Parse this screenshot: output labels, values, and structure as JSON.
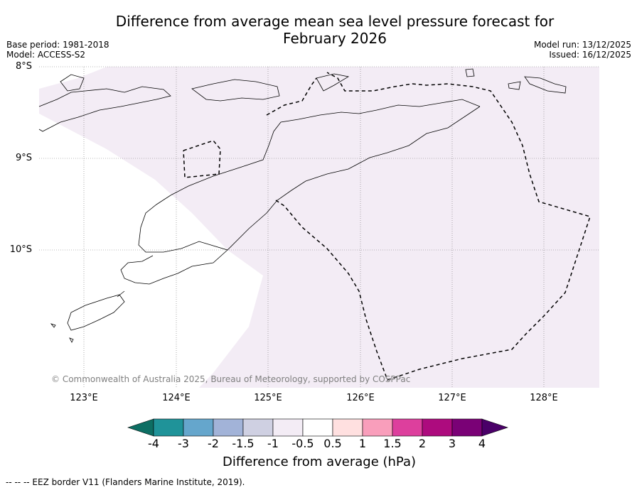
{
  "title": {
    "line1": "Difference from average mean sea level pressure forecast for",
    "line2": "February 2026"
  },
  "meta": {
    "base_period": "Base period: 1981-2018",
    "model": "Model: ACCESS-S2",
    "model_run": "Model run: 13/12/2025",
    "issued": "Issued: 16/12/2025"
  },
  "map": {
    "lat_labels": [
      "8°S",
      "9°S",
      "10°S"
    ],
    "lon_labels": [
      "123°E",
      "124°E",
      "125°E",
      "126°E",
      "127°E",
      "128°E"
    ],
    "copyright": "© Commonwealth of Australia 2025, Bureau of Meteorology, supported by COSPPac",
    "shaded_category": "-1 to -0.5",
    "shade_color": "#f3ecf5"
  },
  "colorbar": {
    "ticks": [
      "-4",
      "-3",
      "-2",
      "-1.5",
      "-1",
      "-0.5",
      "0.5",
      "1",
      "1.5",
      "2",
      "3",
      "4"
    ],
    "colors": [
      "#0d6e63",
      "#1f9399",
      "#65a6cc",
      "#a2b3d8",
      "#cfd0e2",
      "#f3ecf5",
      "#ffffff",
      "#ffe0e0",
      "#f99ebb",
      "#dd3f9d",
      "#ad0b7e",
      "#7a0176",
      "#4a0068"
    ],
    "label": "Difference from average (hPa)"
  },
  "footnote": "--  --  -- EEZ border V11 (Flanders Marine Institute, 2019)."
}
